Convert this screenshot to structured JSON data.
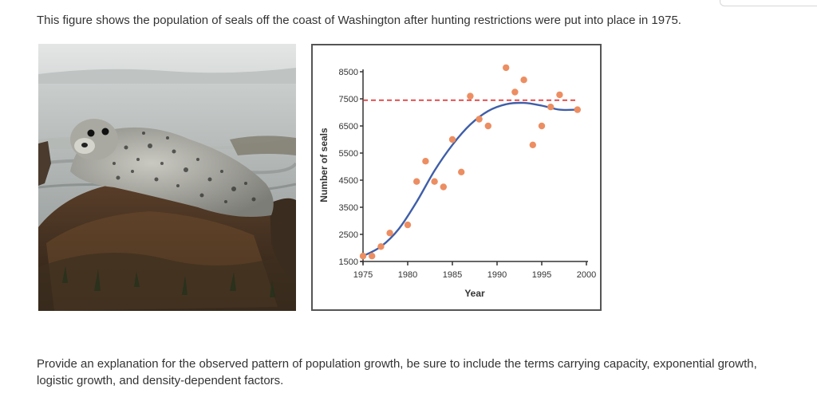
{
  "intro_text": "This figure shows the population of seals off the coast of Washington after hunting restrictions were put into place in 1975.",
  "question_text": "Provide an explanation for the observed pattern of population growth, be sure to include the terms carrying capacity, exponential growth, logistic growth, and density-dependent factors.",
  "photo": {
    "subject": "harbor seal resting on seaweed-covered rock"
  },
  "colors": {
    "points": "#ec8e62",
    "curve": "#3f5ea8",
    "capacity_line": "#e02828",
    "axis": "#333333",
    "box_border": "#555555"
  },
  "chart_data": {
    "type": "scatter",
    "title": "",
    "xlabel": "Year",
    "ylabel": "Number of seals",
    "xlim": [
      1975,
      2000
    ],
    "ylim": [
      1500,
      8500
    ],
    "x_ticks": [
      "1975",
      "1980",
      "1985",
      "1990",
      "1995",
      "2000"
    ],
    "y_ticks": [
      "1500",
      "2500",
      "3500",
      "4500",
      "5500",
      "6500",
      "7500",
      "8500"
    ],
    "observed_points": [
      {
        "x": 1975,
        "y": 1700
      },
      {
        "x": 1976,
        "y": 1700
      },
      {
        "x": 1977,
        "y": 2050
      },
      {
        "x": 1978,
        "y": 2550
      },
      {
        "x": 1980,
        "y": 2850
      },
      {
        "x": 1981,
        "y": 4450
      },
      {
        "x": 1982,
        "y": 5200
      },
      {
        "x": 1983,
        "y": 4450
      },
      {
        "x": 1984,
        "y": 4250
      },
      {
        "x": 1985,
        "y": 6000
      },
      {
        "x": 1986,
        "y": 4800
      },
      {
        "x": 1987,
        "y": 7600
      },
      {
        "x": 1988,
        "y": 6750
      },
      {
        "x": 1989,
        "y": 6500
      },
      {
        "x": 1991,
        "y": 8650
      },
      {
        "x": 1992,
        "y": 7750
      },
      {
        "x": 1993,
        "y": 8200
      },
      {
        "x": 1994,
        "y": 5800
      },
      {
        "x": 1995,
        "y": 6500
      },
      {
        "x": 1996,
        "y": 7200
      },
      {
        "x": 1997,
        "y": 7650
      },
      {
        "x": 1999,
        "y": 7100
      }
    ],
    "fitted_curve": [
      {
        "x": 1975,
        "y": 1700
      },
      {
        "x": 1977,
        "y": 2050
      },
      {
        "x": 1979,
        "y": 2700
      },
      {
        "x": 1981,
        "y": 3700
      },
      {
        "x": 1983,
        "y": 4850
      },
      {
        "x": 1985,
        "y": 5800
      },
      {
        "x": 1987,
        "y": 6550
      },
      {
        "x": 1989,
        "y": 7050
      },
      {
        "x": 1991,
        "y": 7300
      },
      {
        "x": 1993,
        "y": 7350
      },
      {
        "x": 1995,
        "y": 7250
      },
      {
        "x": 1997,
        "y": 7100
      },
      {
        "x": 1999,
        "y": 7100
      }
    ],
    "carrying_capacity": {
      "y": 7450,
      "x_start": 1975,
      "x_end": 1999
    },
    "grid": false,
    "legend": "none"
  }
}
